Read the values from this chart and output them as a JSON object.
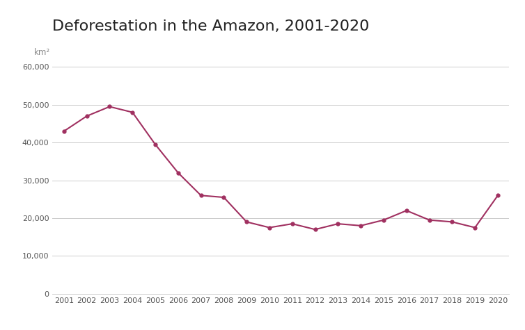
{
  "title": "Deforestation in the Amazon, 2001-2020",
  "ylabel": "km²",
  "years": [
    2001,
    2002,
    2003,
    2004,
    2005,
    2006,
    2007,
    2008,
    2009,
    2010,
    2011,
    2012,
    2013,
    2014,
    2015,
    2016,
    2017,
    2018,
    2019,
    2020
  ],
  "values": [
    43000,
    47000,
    49500,
    48000,
    39500,
    32000,
    26000,
    25500,
    19000,
    17500,
    18500,
    17000,
    18500,
    18000,
    19500,
    22000,
    19500,
    19000,
    17500,
    26000
  ],
  "line_color": "#a03060",
  "background_color": "#ffffff",
  "ylim": [
    0,
    62000
  ],
  "yticks": [
    0,
    10000,
    20000,
    30000,
    40000,
    50000,
    60000
  ],
  "title_fontsize": 16,
  "label_fontsize": 8.5,
  "tick_fontsize": 8,
  "grid_color": "#cccccc",
  "linewidth": 1.5,
  "marker": "o",
  "marker_size": 3.5
}
